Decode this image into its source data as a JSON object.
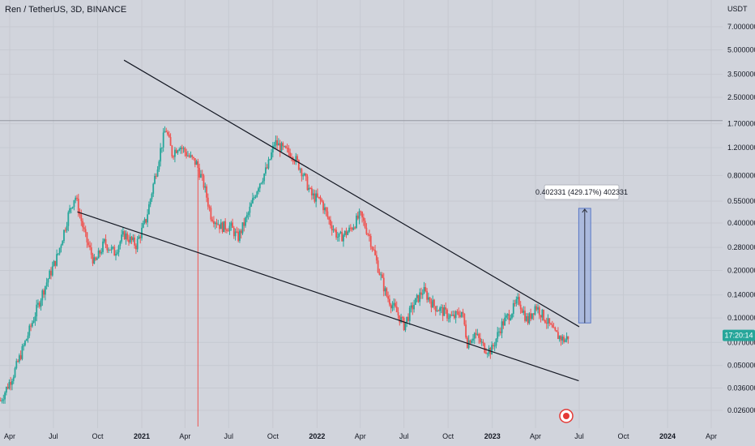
{
  "header": {
    "title": "Ren / TetherUS, 3D, BINANCE",
    "unit": "USDT"
  },
  "price_tag": {
    "label": "17:20:14",
    "value": 0.0775,
    "color": "#26a69a"
  },
  "annotation": {
    "label": "0.402331 (429.17%) 402331"
  },
  "colors": {
    "up": "#26a69a",
    "down": "#ef5350",
    "trendline": "#131722",
    "target_box": "#9db1dd",
    "target_border": "#5b78c7",
    "marker_line": "#ef5350"
  },
  "chart_data": {
    "type": "candlestick",
    "title": "Ren / TetherUS, 3D, BINANCE",
    "y_unit": "USDT",
    "y_scale": "log",
    "y_ticks": [
      "7.000000",
      "5.000000",
      "3.500000",
      "2.500000",
      "1.700000",
      "1.200000",
      "0.800000",
      "0.550000",
      "0.400000",
      "0.280000",
      "0.200000",
      "0.140000",
      "0.100000",
      "0.070000",
      "0.050000",
      "0.036000",
      "0.026000"
    ],
    "x_ticks": [
      {
        "label": "Apr",
        "date": "2020-04-01"
      },
      {
        "label": "Jul",
        "date": "2020-07-01"
      },
      {
        "label": "Oct",
        "date": "2020-10-01"
      },
      {
        "label": "2021",
        "date": "2021-01-01",
        "bold": true
      },
      {
        "label": "Apr",
        "date": "2021-04-01"
      },
      {
        "label": "Jul",
        "date": "2021-07-01"
      },
      {
        "label": "Oct",
        "date": "2021-10-01"
      },
      {
        "label": "2022",
        "date": "2022-01-01",
        "bold": true
      },
      {
        "label": "Apr",
        "date": "2022-04-01"
      },
      {
        "label": "Jul",
        "date": "2022-07-01"
      },
      {
        "label": "Oct",
        "date": "2022-10-01"
      },
      {
        "label": "2023",
        "date": "2023-01-01",
        "bold": true
      },
      {
        "label": "Apr",
        "date": "2023-04-01"
      },
      {
        "label": "Jul",
        "date": "2023-07-01"
      },
      {
        "label": "Oct",
        "date": "2023-10-01"
      },
      {
        "label": "2024",
        "date": "2024-01-01",
        "bold": true
      },
      {
        "label": "Apr",
        "date": "2024-04-01"
      }
    ],
    "price_path": [
      [
        "2020-03-13",
        0.03
      ],
      [
        "2020-04-10",
        0.045
      ],
      [
        "2020-05-10",
        0.08
      ],
      [
        "2020-06-10",
        0.15
      ],
      [
        "2020-07-10",
        0.25
      ],
      [
        "2020-08-01",
        0.45
      ],
      [
        "2020-08-15",
        0.6
      ],
      [
        "2020-09-05",
        0.33
      ],
      [
        "2020-09-25",
        0.22
      ],
      [
        "2020-10-15",
        0.3
      ],
      [
        "2020-11-05",
        0.26
      ],
      [
        "2020-11-25",
        0.34
      ],
      [
        "2020-12-20",
        0.29
      ],
      [
        "2021-01-10",
        0.42
      ],
      [
        "2021-01-25",
        0.7
      ],
      [
        "2021-02-10",
        1.2
      ],
      [
        "2021-02-20",
        1.6
      ],
      [
        "2021-03-05",
        1.1
      ],
      [
        "2021-03-20",
        1.25
      ],
      [
        "2021-04-10",
        1.05
      ],
      [
        "2021-04-25",
        0.95
      ],
      [
        "2021-05-10",
        0.7
      ],
      [
        "2021-05-25",
        0.45
      ],
      [
        "2021-06-15",
        0.38
      ],
      [
        "2021-07-05",
        0.38
      ],
      [
        "2021-07-20",
        0.32
      ],
      [
        "2021-08-10",
        0.45
      ],
      [
        "2021-09-01",
        0.7
      ],
      [
        "2021-09-20",
        0.9
      ],
      [
        "2021-10-05",
        1.3
      ],
      [
        "2021-10-25",
        1.15
      ],
      [
        "2021-11-10",
        1.1
      ],
      [
        "2021-12-01",
        0.85
      ],
      [
        "2021-12-20",
        0.6
      ],
      [
        "2022-01-10",
        0.55
      ],
      [
        "2022-01-25",
        0.42
      ],
      [
        "2022-02-15",
        0.32
      ],
      [
        "2022-03-10",
        0.36
      ],
      [
        "2022-04-01",
        0.45
      ],
      [
        "2022-04-20",
        0.33
      ],
      [
        "2022-05-10",
        0.2
      ],
      [
        "2022-05-25",
        0.14
      ],
      [
        "2022-06-15",
        0.11
      ],
      [
        "2022-07-01",
        0.09
      ],
      [
        "2022-07-20",
        0.12
      ],
      [
        "2022-08-10",
        0.15
      ],
      [
        "2022-09-01",
        0.12
      ],
      [
        "2022-09-20",
        0.11
      ],
      [
        "2022-10-10",
        0.1
      ],
      [
        "2022-10-30",
        0.11
      ],
      [
        "2022-11-10",
        0.07
      ],
      [
        "2022-11-25",
        0.08
      ],
      [
        "2022-12-15",
        0.065
      ],
      [
        "2022-12-30",
        0.062
      ],
      [
        "2023-01-20",
        0.09
      ],
      [
        "2023-02-10",
        0.11
      ],
      [
        "2023-02-25",
        0.13
      ],
      [
        "2023-03-15",
        0.095
      ],
      [
        "2023-04-01",
        0.12
      ],
      [
        "2023-04-20",
        0.1
      ],
      [
        "2023-05-10",
        0.08
      ],
      [
        "2023-06-01",
        0.072
      ],
      [
        "2023-06-10",
        0.078
      ]
    ],
    "trendlines": [
      {
        "name": "upper",
        "from": [
          "2020-11-25",
          4.3
        ],
        "to": [
          "2023-07-01",
          0.088
        ]
      },
      {
        "name": "lower",
        "from": [
          "2020-08-20",
          0.47
        ],
        "to": [
          "2023-06-30",
          0.04
        ]
      }
    ],
    "horizontal_line": {
      "value": 1.78
    },
    "vertical_marker": {
      "date": "2021-04-28"
    },
    "target_range": {
      "from_date": "2023-06-30",
      "to_date": "2023-07-25",
      "low": 0.093,
      "high": 0.495
    }
  }
}
